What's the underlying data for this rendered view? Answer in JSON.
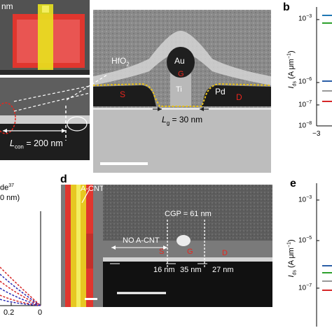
{
  "panel_a": {
    "inset_top_text": "nm",
    "hfo2": "HfO",
    "hfo2_sub": "2",
    "au": "Au",
    "g": "G",
    "ti": "Ti",
    "s": "S",
    "pd": "Pd",
    "d": "D",
    "lg_italic": "L",
    "lg_sub": "g",
    "lg_value": " = 30 nm",
    "lcon_italic": "L",
    "lcon_sub": "con",
    "lcon_value": " = 200 nm"
  },
  "panel_b": {
    "letter": "b",
    "ylabel_italic": "I",
    "ylabel_sub": "ds",
    "ylabel_unit": " (A μm",
    "ylabel_exp": "−1",
    "ylabel_close": ")",
    "ticks": [
      "10",
      "10",
      "10",
      "10"
    ],
    "tick_exps": [
      "−3",
      "−6",
      "−7",
      "−8"
    ],
    "x_tick": "−3",
    "series_colors": [
      "#1f77b4",
      "#2ca02c",
      "#2b5ea7",
      "#999999",
      "#d62728"
    ]
  },
  "panel_c": {
    "frag_line1": "de",
    "frag_sup": "37",
    "frag_line2": "0 nm)",
    "x_ticks": [
      "0.2",
      "0"
    ]
  },
  "panel_d": {
    "letter": "d",
    "a_cnt": "A-CNT",
    "cgp": "CGP = 61 nm",
    "no_a_cnt": "NO A-CNT",
    "s": "S",
    "g": "G",
    "d": "D",
    "dim1": "16 nm",
    "dim2": "35 nm",
    "dim3": "27 nm"
  },
  "panel_e": {
    "letter": "e",
    "ylabel_italic": "I",
    "ylabel_sub": "ds",
    "ylabel_unit": " (A μm",
    "ylabel_exp": "−1",
    "ylabel_close": ")",
    "ticks": [
      "10",
      "10",
      "10"
    ],
    "tick_exps": [
      "−3",
      "−5",
      "−7"
    ],
    "series_colors": [
      "#2b5ea7",
      "#2ca02c",
      "#999999",
      "#d62728"
    ]
  }
}
